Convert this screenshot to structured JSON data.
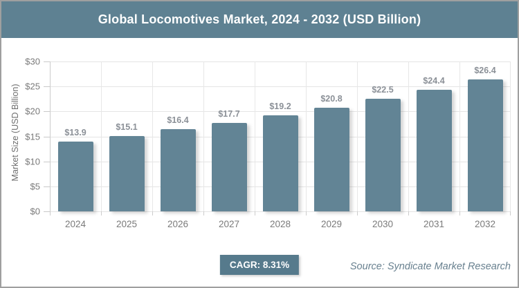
{
  "header": {
    "title": "Global Locomotives Market, 2024 - 2032 (USD Billion)"
  },
  "chart_data": {
    "type": "bar",
    "title": "Global Locomotives Market, 2024 - 2032 (USD Billion)",
    "categories": [
      "2024",
      "2025",
      "2026",
      "2027",
      "2028",
      "2029",
      "2030",
      "2031",
      "2032"
    ],
    "values": [
      13.9,
      15.1,
      16.4,
      17.7,
      19.2,
      20.8,
      22.5,
      24.4,
      26.4
    ],
    "value_labels": [
      "$13.9",
      "$15.1",
      "$16.4",
      "$17.7",
      "$19.2",
      "$20.8",
      "$22.5",
      "$24.4",
      "$26.4"
    ],
    "xlabel": "",
    "ylabel": "Market Size (USD Billion)",
    "ylim": [
      0,
      30
    ],
    "ytick_step": 5,
    "ytick_labels": [
      "$0",
      "$5",
      "$10",
      "$15",
      "$20",
      "$25",
      "$30"
    ],
    "grid": true,
    "legend": false
  },
  "footer": {
    "cagr_label": "CAGR: 8.31%",
    "source": "Source: Syndicate Market Research"
  },
  "colors": {
    "band_bg": "#5e8192",
    "bar": "#628495",
    "badge_bg": "#567a8c",
    "title_text": "#ffffff"
  }
}
